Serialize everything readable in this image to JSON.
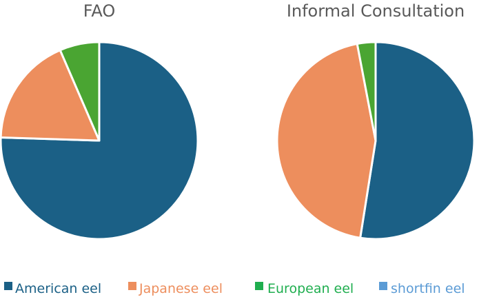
{
  "chart_data": [
    {
      "type": "pie",
      "title": "FAO",
      "categories": [
        "American eel",
        "Japanese eel",
        "European eel",
        "shortfin eel"
      ],
      "values": [
        75.5,
        18.0,
        6.5,
        0.0
      ],
      "colors": [
        "#1b6086",
        "#ed8e5d",
        "#4aa532",
        "#5b9bd5"
      ]
    },
    {
      "type": "pie",
      "title": "Informal Consultation",
      "categories": [
        "American eel",
        "Japanese eel",
        "European eel",
        "shortfin eel"
      ],
      "values": [
        52.5,
        44.5,
        3.0,
        0.0
      ],
      "colors": [
        "#1b6086",
        "#ed8e5d",
        "#4aa532",
        "#5b9bd5"
      ]
    }
  ],
  "legend": {
    "placement": "bottom",
    "entries": [
      {
        "label": "American eel",
        "color": "#1b6086"
      },
      {
        "label": "Japanese eel",
        "color": "#ed8e5d"
      },
      {
        "label": "European eel",
        "color": "#1fae4f"
      },
      {
        "label": "shortfin eel",
        "color": "#5b9bd5"
      }
    ]
  }
}
